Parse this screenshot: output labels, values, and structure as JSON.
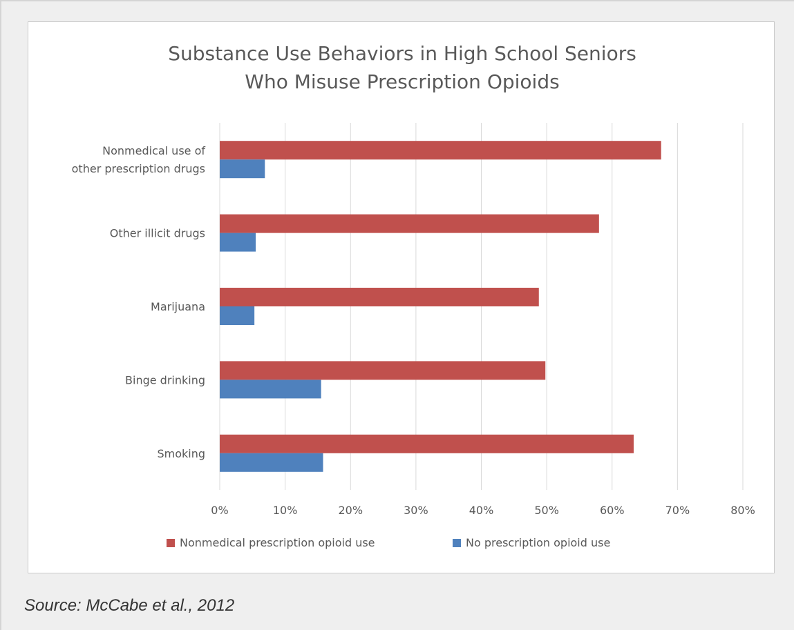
{
  "source_text": "Source: McCabe et al., 2012",
  "colors": {
    "nonmedical": "#c0504d",
    "no_use": "#4f81bd",
    "grid": "#d9d9d9",
    "text": "#595959"
  },
  "chart_data": {
    "type": "bar",
    "orientation": "horizontal",
    "title_lines": [
      "Substance Use Behaviors in High School Seniors",
      "Who Misuse Prescription Opioids"
    ],
    "categories": [
      [
        "Nonmedical use of",
        "other prescription drugs"
      ],
      [
        "Other illicit drugs"
      ],
      [
        "Marijuana"
      ],
      [
        "Binge drinking"
      ],
      [
        "Smoking"
      ]
    ],
    "series": [
      {
        "name": "Nonmedical prescription opioid use",
        "color": "#c0504d",
        "values": [
          67.5,
          58,
          48.8,
          49.8,
          63.3
        ]
      },
      {
        "name": "No prescription opioid use",
        "color": "#4f81bd",
        "values": [
          6.9,
          5.5,
          5.3,
          15.5,
          15.8
        ]
      }
    ],
    "xlim": [
      0,
      80
    ],
    "xticks": [
      "0%",
      "10%",
      "20%",
      "30%",
      "40%",
      "50%",
      "60%",
      "70%",
      "80%"
    ],
    "grid": true,
    "legend_position": "bottom"
  }
}
